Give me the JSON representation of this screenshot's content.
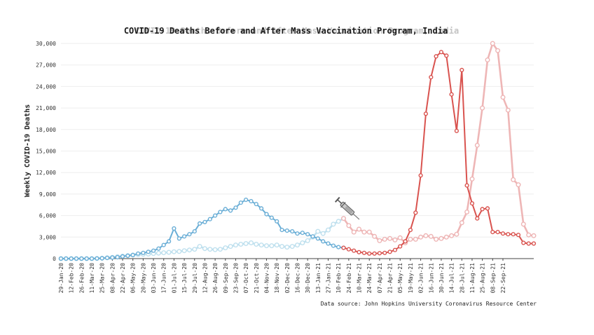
{
  "chart_data": {
    "type": "line",
    "title": "COVID-19 Deaths Before and After Mass Vaccination Program, India",
    "ghost_title": "COVID-19 Deaths Before and After Mass Vaccination Program, India",
    "ylabel": "Weekly COVID-19 Deaths",
    "source": "Data source: John Hopkins University Coronavirus Resource Center",
    "ylim": [
      0,
      30000
    ],
    "yticks": [
      0,
      3000,
      6000,
      9000,
      12000,
      15000,
      18000,
      21000,
      24000,
      27000,
      30000
    ],
    "ytick_labels": [
      "0",
      "3,000",
      "6,000",
      "9,000",
      "12,000",
      "15,000",
      "18,000",
      "21,000",
      "24,000",
      "27,000",
      "30,000"
    ],
    "grid": true,
    "x_labels": [
      "29-Jan-20",
      "12-Feb-20",
      "26-Feb-20",
      "11-Mar-20",
      "25-Mar-20",
      "08-Apr-20",
      "22-Apr-20",
      "06-May-20",
      "20-May-20",
      "03-Jun-20",
      "17-Jun-20",
      "01-Jul-20",
      "15-Jul-20",
      "29-Jul-20",
      "12-Aug-20",
      "26-Aug-20",
      "09-Sep-20",
      "23-Sep-20",
      "07-Oct-20",
      "21-Oct-20",
      "04-Nov-20",
      "18-Nov-20",
      "02-Dec-20",
      "16-Dec-20",
      "30-Dec-20",
      "13-Jan-21",
      "27-Jan-21",
      "10-Feb-21",
      "24-Feb-21",
      "10-Mar-21",
      "24-Mar-21",
      "07-Apr-21",
      "21-Apr-21",
      "05-May-21",
      "19-May-21",
      "02-Jun-21",
      "16-Jun-21",
      "30-Jun-21",
      "14-Jul-21",
      "28-Jul-21",
      "11-Aug-21",
      "25-Aug-21",
      "08-Sep-21",
      "22-Sep-21"
    ],
    "series": [
      {
        "role": "before_vaccination",
        "color": "#6aaed6",
        "start_week": 0,
        "values": [
          0,
          0,
          0,
          0,
          0,
          0,
          0,
          20,
          50,
          100,
          150,
          200,
          300,
          400,
          500,
          700,
          800,
          950,
          1100,
          1400,
          1900,
          2400,
          4200,
          2800,
          3100,
          3400,
          3800,
          4900,
          5100,
          5500,
          6000,
          6500,
          6900,
          6700,
          7100,
          7800,
          8200,
          8000,
          7600,
          7000,
          6200,
          5700,
          5200,
          4000,
          3900,
          3800,
          3500,
          3600,
          3400,
          3100,
          2800,
          2400,
          2100,
          1800,
          1600,
          1500
        ]
      },
      {
        "role": "after_vaccination",
        "color": "#d9534f",
        "start_week": 55,
        "values": [
          1500,
          1300,
          1100,
          900,
          800,
          700,
          700,
          750,
          800,
          950,
          1200,
          1700,
          2400,
          4000,
          6400,
          11600,
          20200,
          25300,
          28200,
          28800,
          28300,
          22900,
          17800,
          26300,
          10200,
          7700,
          5600,
          6900,
          7000,
          3700,
          3700,
          3500,
          3400,
          3400,
          3300,
          2200,
          2100,
          2100
        ]
      },
      {
        "role": "before_vaccination_faded",
        "color": "#bfe0ee",
        "start_week": 0,
        "values": [
          0,
          0,
          0,
          0,
          0,
          0,
          0,
          20,
          60,
          120,
          180,
          260,
          340,
          420,
          500,
          560,
          600,
          640,
          700,
          760,
          820,
          880,
          960,
          1000,
          1100,
          1200,
          1300,
          1700,
          1400,
          1300,
          1250,
          1300,
          1500,
          1700,
          1900,
          2000,
          2100,
          2200,
          2000,
          1900,
          1800,
          1800,
          1900,
          1700,
          1600,
          1700,
          1900,
          2200,
          2500,
          3000,
          3800,
          3500,
          4000,
          4800,
          5200,
          5600
        ]
      },
      {
        "role": "after_vaccination_faded",
        "color": "#eeb6b6",
        "start_week": 55,
        "values": [
          5600,
          4600,
          3700,
          4100,
          3700,
          3700,
          3100,
          2500,
          2700,
          2800,
          2600,
          2900,
          2200,
          2700,
          2700,
          3000,
          3200,
          3100,
          2700,
          2800,
          3000,
          3200,
          3400,
          5000,
          6500,
          11100,
          15800,
          21000,
          27700,
          30000,
          29000,
          22500,
          20700,
          11000,
          10300,
          4800,
          3300,
          3200
        ]
      }
    ],
    "annotations": [
      "syringe-icon"
    ]
  }
}
